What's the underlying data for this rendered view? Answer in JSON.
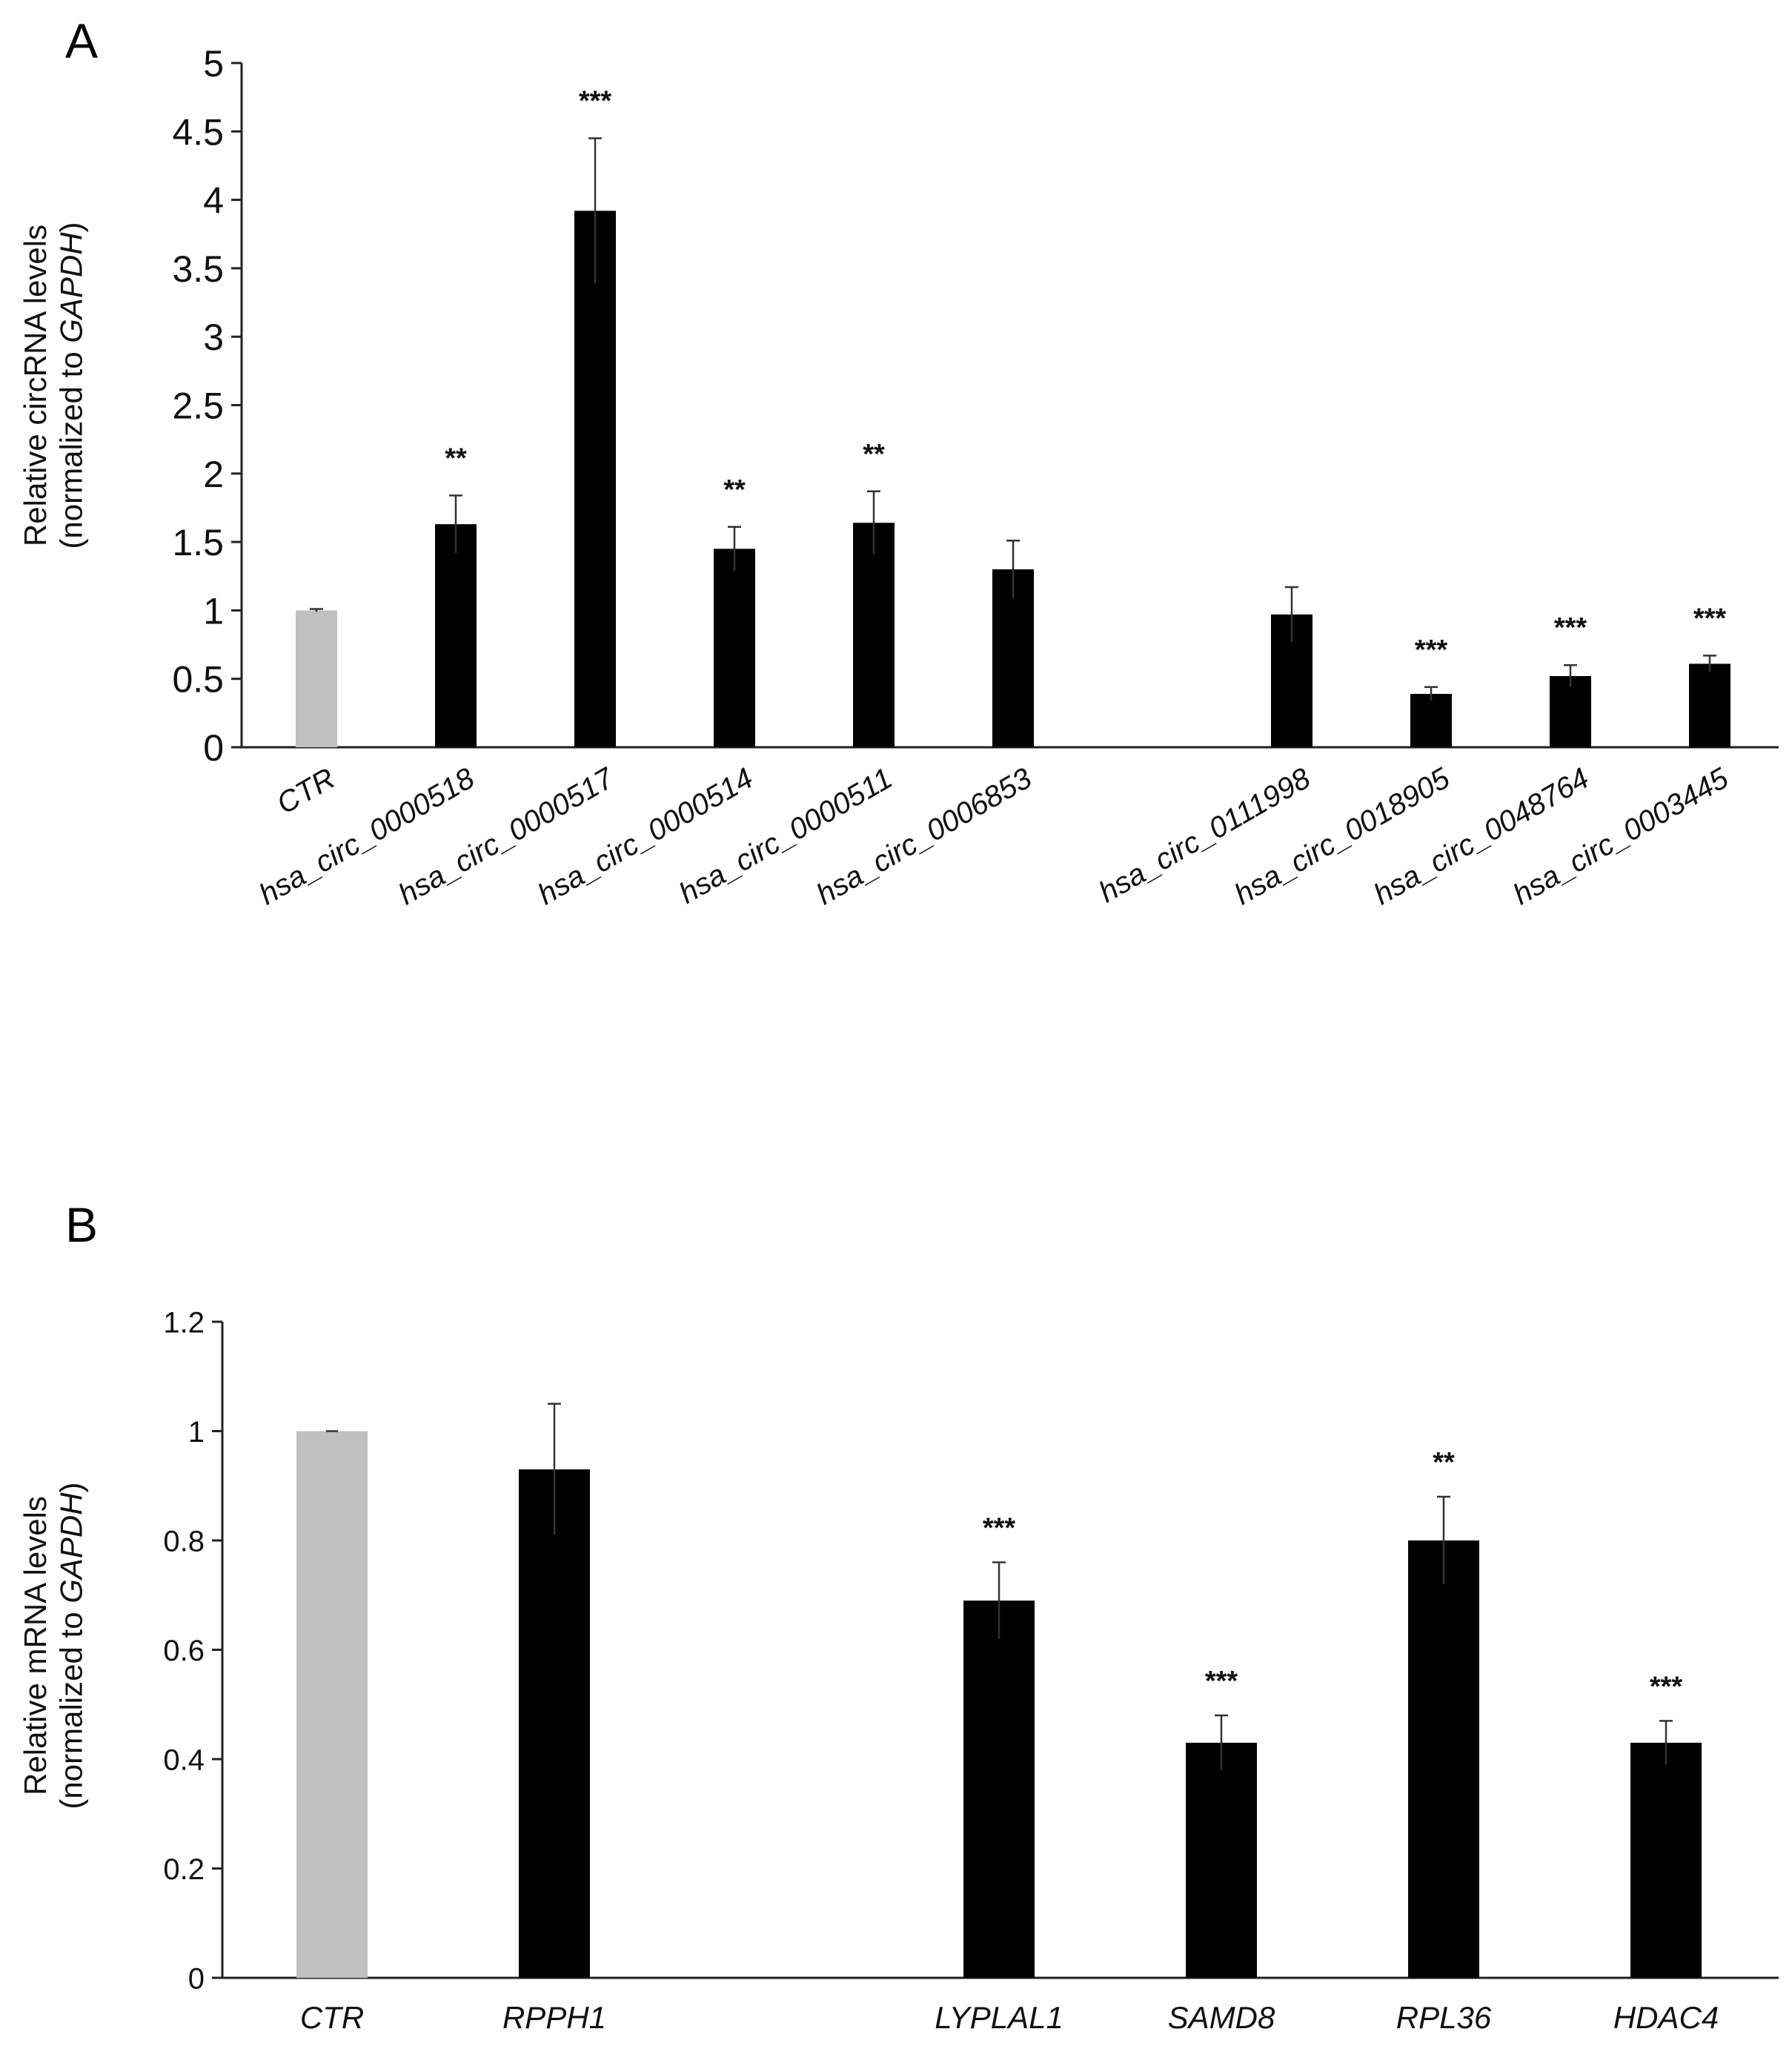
{
  "chart_data": [
    {
      "panel": "A",
      "type": "bar",
      "title": "",
      "xlabel": "",
      "ylabel_line1": "Relative circRNA levels",
      "ylabel_line2_prefix": "(normalized to ",
      "ylabel_line2_gene": "GAPDH",
      "ylabel_line2_suffix": ")",
      "ylim": [
        0,
        5
      ],
      "yticks": [
        0,
        0.5,
        1,
        1.5,
        2,
        2.5,
        3,
        3.5,
        4,
        4.5,
        5
      ],
      "ytick_labels": [
        "0",
        "0.5",
        "1",
        "1.5",
        "2",
        "2.5",
        "3",
        "3.5",
        "4",
        "4.5",
        "5"
      ],
      "categories": [
        "CTR",
        "hsa_circ_0000518",
        "hsa_circ_0000517",
        "hsa_circ_0000514",
        "hsa_circ_0000511",
        "hsa_circ_0006853",
        "hsa_circ_0111998",
        "hsa_circ_0018905",
        "hsa_circ_0048764",
        "hsa_circ_0003445"
      ],
      "slots": [
        0,
        1,
        2,
        3,
        4,
        5,
        7,
        8,
        9,
        10
      ],
      "values": [
        1.0,
        1.63,
        3.92,
        1.45,
        1.64,
        1.3,
        0.97,
        0.39,
        0.52,
        0.61
      ],
      "errors": [
        0.01,
        0.21,
        0.53,
        0.16,
        0.23,
        0.21,
        0.2,
        0.05,
        0.08,
        0.06
      ],
      "significance": [
        "",
        "**",
        "***",
        "**",
        "**",
        "",
        "",
        "***",
        "***",
        "***"
      ],
      "colors": [
        "#c0c0c0",
        "#000000",
        "#000000",
        "#000000",
        "#000000",
        "#000000",
        "#000000",
        "#000000",
        "#000000",
        "#000000"
      ]
    },
    {
      "panel": "B",
      "type": "bar",
      "title": "",
      "xlabel": "",
      "ylabel_line1": "Relative mRNA levels",
      "ylabel_line2_prefix": "(normalized to ",
      "ylabel_line2_gene": "GAPDH",
      "ylabel_line2_suffix": ")",
      "ylim": [
        0,
        1.2
      ],
      "yticks": [
        0,
        0.2,
        0.4,
        0.6,
        0.8,
        1,
        1.2
      ],
      "ytick_labels": [
        "0",
        "0.2",
        "0.4",
        "0.6",
        "0.8",
        "1",
        "1.2"
      ],
      "categories": [
        "CTR",
        "RPPH1",
        "LYPLAL1",
        "SAMD8",
        "RPL36",
        "HDAC4"
      ],
      "slots": [
        0,
        1,
        3,
        4,
        5,
        6
      ],
      "values": [
        1.0,
        0.93,
        0.69,
        0.43,
        0.8,
        0.43
      ],
      "errors": [
        0.0,
        0.12,
        0.07,
        0.05,
        0.08,
        0.04
      ],
      "significance": [
        "",
        "",
        "***",
        "***",
        "**",
        "***"
      ],
      "colors": [
        "#c0c0c0",
        "#000000",
        "#000000",
        "#000000",
        "#000000",
        "#000000"
      ]
    }
  ]
}
